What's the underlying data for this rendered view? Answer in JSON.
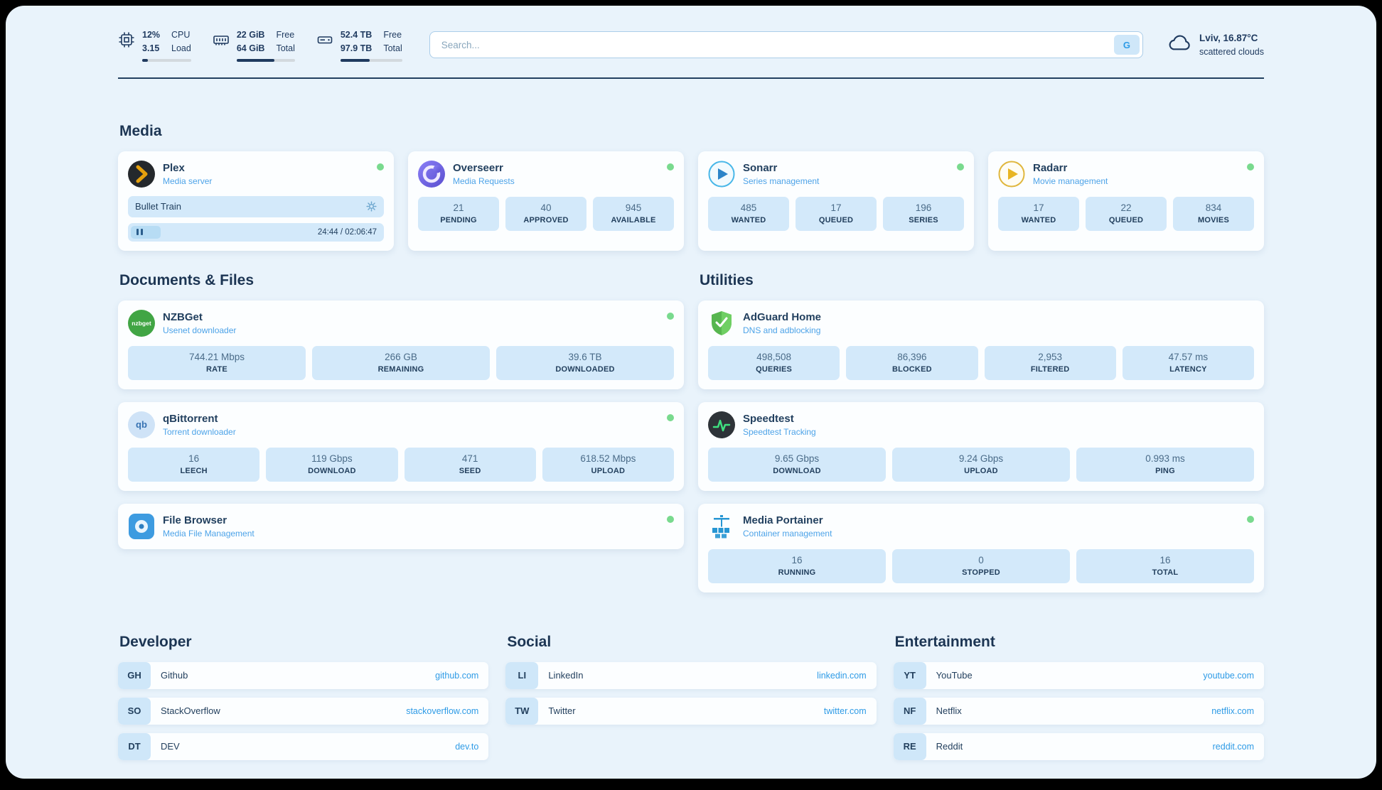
{
  "theme": {
    "accent_blue": "#2e9be6",
    "heading_navy": "#1c3553",
    "status_online": "#79da8e",
    "stat_box_bg": "#d3e9fa"
  },
  "topbar": {
    "cpu": {
      "value_top": "12%",
      "value_bottom": "3.15",
      "label_top": "CPU",
      "label_bottom": "Load",
      "bar_percent": 12
    },
    "ram": {
      "value_top": "22 GiB",
      "value_bottom": "64 GiB",
      "label_top": "Free",
      "label_bottom": "Total",
      "bar_percent": 65
    },
    "disk": {
      "value_top": "52.4 TB",
      "value_bottom": "97.9 TB",
      "label_top": "Free",
      "label_bottom": "Total",
      "bar_percent": 47
    },
    "search": {
      "placeholder": "Search...",
      "button_label": "G"
    },
    "weather": {
      "location": "Lviv, 16.87°C",
      "condition": "scattered clouds"
    }
  },
  "media": {
    "title": "Media",
    "plex": {
      "name": "Plex",
      "subtitle": "Media server",
      "player": {
        "title": "Bullet Train",
        "time": "24:44 / 02:06:47"
      }
    },
    "overseerr": {
      "name": "Overseerr",
      "subtitle": "Media Requests",
      "stats": [
        {
          "value": "21",
          "label": "PENDING"
        },
        {
          "value": "40",
          "label": "APPROVED"
        },
        {
          "value": "945",
          "label": "AVAILABLE"
        }
      ]
    },
    "sonarr": {
      "name": "Sonarr",
      "subtitle": "Series management",
      "stats": [
        {
          "value": "485",
          "label": "WANTED"
        },
        {
          "value": "17",
          "label": "QUEUED"
        },
        {
          "value": "196",
          "label": "SERIES"
        }
      ]
    },
    "radarr": {
      "name": "Radarr",
      "subtitle": "Movie management",
      "stats": [
        {
          "value": "17",
          "label": "WANTED"
        },
        {
          "value": "22",
          "label": "QUEUED"
        },
        {
          "value": "834",
          "label": "MOVIES"
        }
      ]
    }
  },
  "documents": {
    "title": "Documents & Files",
    "nzbget": {
      "name": "NZBGet",
      "subtitle": "Usenet downloader",
      "icon_text": "nzbget",
      "stats": [
        {
          "value": "744.21 Mbps",
          "label": "RATE"
        },
        {
          "value": "266 GB",
          "label": "REMAINING"
        },
        {
          "value": "39.6 TB",
          "label": "DOWNLOADED"
        }
      ]
    },
    "qbittorrent": {
      "name": "qBittorrent",
      "subtitle": "Torrent downloader",
      "icon_text": "qb",
      "stats": [
        {
          "value": "16",
          "label": "LEECH"
        },
        {
          "value": "119 Gbps",
          "label": "DOWNLOAD"
        },
        {
          "value": "471",
          "label": "SEED"
        },
        {
          "value": "618.52 Mbps",
          "label": "UPLOAD"
        }
      ]
    },
    "filebrowser": {
      "name": "File Browser",
      "subtitle": "Media File Management"
    }
  },
  "utilities": {
    "title": "Utilities",
    "adguard": {
      "name": "AdGuard Home",
      "subtitle": "DNS and adblocking",
      "stats": [
        {
          "value": "498,508",
          "label": "QUERIES"
        },
        {
          "value": "86,396",
          "label": "BLOCKED"
        },
        {
          "value": "2,953",
          "label": "FILTERED"
        },
        {
          "value": "47.57 ms",
          "label": "LATENCY"
        }
      ]
    },
    "speedtest": {
      "name": "Speedtest",
      "subtitle": "Speedtest Tracking",
      "stats": [
        {
          "value": "9.65 Gbps",
          "label": "DOWNLOAD"
        },
        {
          "value": "9.24 Gbps",
          "label": "UPLOAD"
        },
        {
          "value": "0.993 ms",
          "label": "PING"
        }
      ]
    },
    "portainer": {
      "name": "Media Portainer",
      "subtitle": "Container management",
      "stats": [
        {
          "value": "16",
          "label": "RUNNING"
        },
        {
          "value": "0",
          "label": "STOPPED"
        },
        {
          "value": "16",
          "label": "TOTAL"
        }
      ]
    }
  },
  "links": {
    "developer": {
      "title": "Developer",
      "items": [
        {
          "abbr": "GH",
          "name": "Github",
          "url": "github.com"
        },
        {
          "abbr": "SO",
          "name": "StackOverflow",
          "url": "stackoverflow.com"
        },
        {
          "abbr": "DT",
          "name": "DEV",
          "url": "dev.to"
        }
      ]
    },
    "social": {
      "title": "Social",
      "items": [
        {
          "abbr": "LI",
          "name": "LinkedIn",
          "url": "linkedin.com"
        },
        {
          "abbr": "TW",
          "name": "Twitter",
          "url": "twitter.com"
        }
      ]
    },
    "entertainment": {
      "title": "Entertainment",
      "items": [
        {
          "abbr": "YT",
          "name": "YouTube",
          "url": "youtube.com"
        },
        {
          "abbr": "NF",
          "name": "Netflix",
          "url": "netflix.com"
        },
        {
          "abbr": "RE",
          "name": "Reddit",
          "url": "reddit.com"
        }
      ]
    }
  }
}
